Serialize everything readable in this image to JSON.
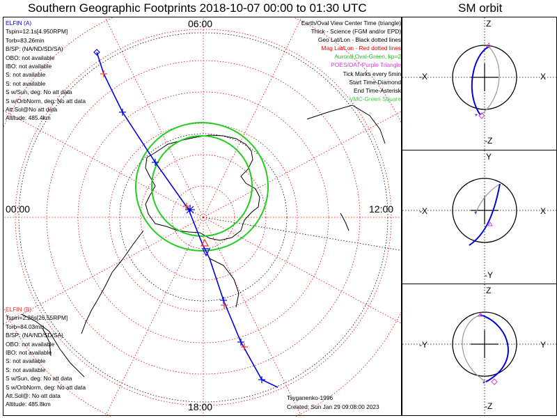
{
  "titles": {
    "main": "Southern Geographic Footprints 2018-10-07 00:00 to 01:30 UTC",
    "orbit": "SM orbit"
  },
  "satellite_a": {
    "name": "ELFIN (A)",
    "color": "#0000dd",
    "lines": [
      "Tspin=12.1s[4.950RPM]",
      "Torb=83.26min",
      "B/SP: (NA/ND/SD/SA)",
      "OBO: not available",
      "IBO: not available",
      "S: not available",
      "S: not available",
      "S w/Sun, deg: No att data",
      "S w/OrbNorm, deg: No att data",
      "Att.Sol@No att data",
      "Altitude: 485.4km"
    ]
  },
  "satellite_b": {
    "name": "ELFIN (B)",
    "color": "#ff3030",
    "lines": [
      "Tspin=2.26s[26.55RPM]",
      "Torb=84.03min",
      "B/SP: (NA/ND/SD/SA)",
      "OBO: not available",
      "IBO: not available",
      "S: not available",
      "S: not available",
      "S w/Sun, deg: No att data",
      "S w/OrbNorm, deg: No att data",
      "Att.Sol@: No att data",
      "Altitude: 485.8km"
    ]
  },
  "legend": [
    {
      "text": "Earth/Oval View Center Time (triangle)",
      "color": "#000000"
    },
    {
      "text": "Thick - Science (FGM and/or EPD)",
      "color": "#000000"
    },
    {
      "text": "Geo Lat/Lon - Black dotted lines",
      "color": "#000000"
    },
    {
      "text": "Mag Lat/Lon - Red dotted lines",
      "color": "#ee0000"
    },
    {
      "text": "Auroral Oval-Green, kp=2",
      "color": "#22bb22"
    },
    {
      "text": "POES/OAT-Purple Triangle",
      "color": "#cc44cc"
    },
    {
      "text": "Tick Marks every 5min",
      "color": "#000000"
    },
    {
      "text": "Start Time-Diamond",
      "color": "#000000"
    },
    {
      "text": "End Time-Asterisk",
      "color": "#000000"
    },
    {
      "text": "VMC-Green Square",
      "color": "#44cc44"
    }
  ],
  "clock_labels": {
    "top": "06:00",
    "left": "00:00",
    "right": "12:00",
    "bottom": "18:00"
  },
  "footer": {
    "model": "Tsyganenko-1996",
    "created": "Created: Sun Jan 29 09:08:00 2023"
  },
  "orbit_panels": [
    {
      "top": "Z",
      "bottom": "-Z",
      "left": "-X",
      "right": "X"
    },
    {
      "top": "Y",
      "bottom": "-Y",
      "left": "-X",
      "right": "X"
    },
    {
      "top": "Z",
      "bottom": "-Z",
      "left": "-Y",
      "right": "Y"
    }
  ],
  "colors": {
    "geo_grid": "#000000",
    "mag_grid": "#dd0000",
    "oval": "#22cc22",
    "track_a": "#0000dd",
    "track_b": "#ff3030",
    "orbit_gray": "#999999"
  }
}
